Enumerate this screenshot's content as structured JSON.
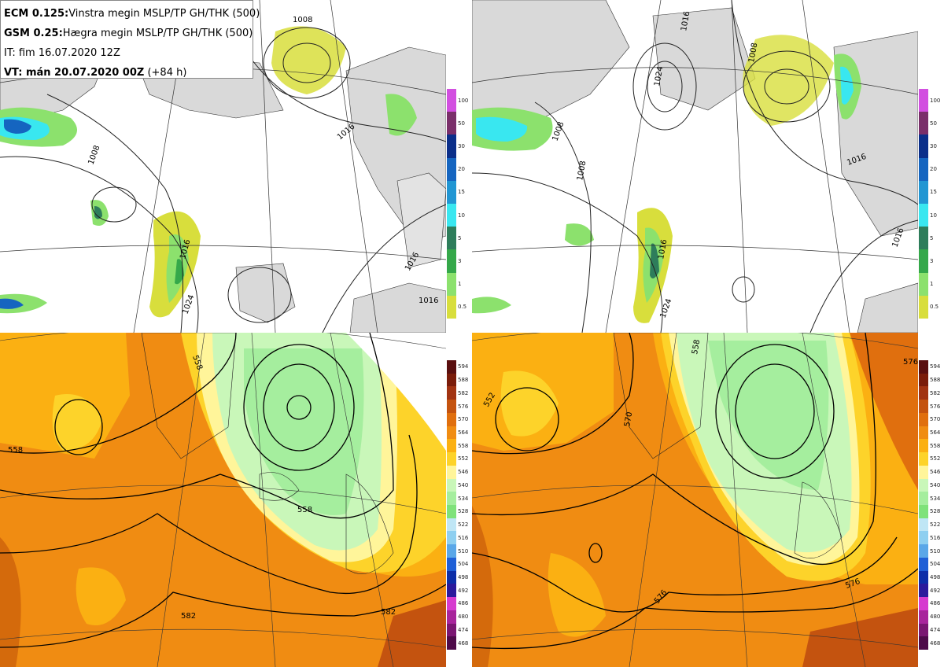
{
  "info": {
    "line1_bold": "ECM 0.125:",
    "line1_text": "Vinstra megin MSLP/TP GH/THK (500)",
    "line2_bold": "GSM 0.25:",
    "line2_text": "Hægra megin MSLP/TP GH/THK (500)",
    "line3": "IT: fim 16.07.2020 12Z",
    "line4_bold": "VT: mán 20.07.2020 00Z",
    "line4_text": " (+84 h)"
  },
  "precip_colorbar": {
    "labels": [
      "100",
      "50",
      "30",
      "20",
      "15",
      "10",
      "5",
      "3",
      "1",
      "0.5"
    ],
    "colors": [
      "#d24fe0",
      "#7a2f6a",
      "#0b2f8a",
      "#1565c0",
      "#2196d3",
      "#39e7f0",
      "#2e7d5b",
      "#35a84a",
      "#8ce16d",
      "#d8de3c"
    ]
  },
  "thk_colorbar": {
    "labels": [
      "594",
      "588",
      "582",
      "576",
      "570",
      "564",
      "558",
      "552",
      "546",
      "540",
      "534",
      "528",
      "522",
      "516",
      "510",
      "504",
      "498",
      "492",
      "486",
      "480",
      "474",
      "468"
    ],
    "colors": [
      "#5a0f0f",
      "#7a1c0a",
      "#a13312",
      "#c4530f",
      "#e06f0e",
      "#f08c12",
      "#fbb012",
      "#fdd32a",
      "#fff59a",
      "#c9f7b9",
      "#a5ee9e",
      "#7fe27a",
      "#bfe6f5",
      "#8ecff0",
      "#5aa7e8",
      "#1f5fd6",
      "#0d2ea8",
      "#2b1a9c",
      "#d63bcf",
      "#a8259c",
      "#7a1672",
      "#4e0a4a"
    ]
  },
  "panels": {
    "top_left_isobars": [
      "1008",
      "1008",
      "1016",
      "1016",
      "1016",
      "1016",
      "1024"
    ],
    "top_right_isobars": [
      "1016",
      "1024",
      "1008",
      "1008",
      "1008",
      "1016",
      "1016",
      "1016",
      "1024"
    ],
    "bottom_left_contours": [
      "558",
      "558",
      "558",
      "582",
      "582"
    ],
    "bottom_right_contours": [
      "552",
      "558",
      "570",
      "576",
      "576",
      "576"
    ]
  }
}
